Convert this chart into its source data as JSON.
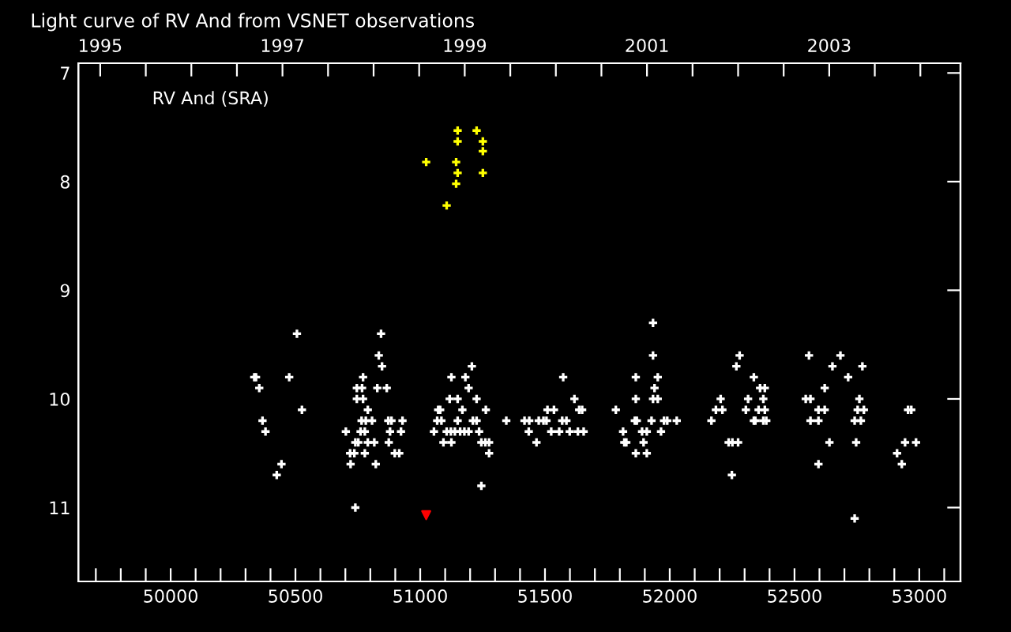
{
  "chart_data": {
    "type": "scatter",
    "title": "Light curve of RV And from VSNET observations",
    "annotations": [
      "RV And (SRA)"
    ],
    "xlim": [
      49630,
      53165
    ],
    "xticks": [
      {
        "value": 49700,
        "label": null
      },
      {
        "value": 49800,
        "label": null
      },
      {
        "value": 49900,
        "label": null
      },
      50000,
      {
        "value": 50100,
        "label": null
      },
      {
        "value": 50200,
        "label": null
      },
      {
        "value": 50300,
        "label": null
      },
      {
        "value": 50400,
        "label": null
      },
      50500,
      {
        "value": 50600,
        "label": null
      },
      {
        "value": 50700,
        "label": null
      },
      {
        "value": 50800,
        "label": null
      },
      {
        "value": 50900,
        "label": null
      },
      51000,
      {
        "value": 51100,
        "label": null
      },
      {
        "value": 51200,
        "label": null
      },
      {
        "value": 51300,
        "label": null
      },
      {
        "value": 51400,
        "label": null
      },
      51500,
      {
        "value": 51600,
        "label": null
      },
      {
        "value": 51700,
        "label": null
      },
      {
        "value": 51800,
        "label": null
      },
      {
        "value": 51900,
        "label": null
      },
      52000,
      {
        "value": 52100,
        "label": null
      },
      {
        "value": 52200,
        "label": null
      },
      {
        "value": 52300,
        "label": null
      },
      {
        "value": 52400,
        "label": null
      },
      52500,
      {
        "value": 52600,
        "label": null
      },
      {
        "value": 52700,
        "label": null
      },
      {
        "value": 52800,
        "label": null
      },
      {
        "value": 52900,
        "label": null
      },
      53000,
      {
        "value": 53100,
        "label": null
      }
    ],
    "x2lim": [
      1994.76,
      2004.44
    ],
    "x2ticks": [
      1995,
      {
        "value": 1995.5,
        "label": null
      },
      {
        "value": 1996,
        "label": null
      },
      {
        "value": 1996.5,
        "label": null
      },
      1997,
      {
        "value": 1997.5,
        "label": null
      },
      {
        "value": 1998,
        "label": null
      },
      {
        "value": 1998.5,
        "label": null
      },
      1999,
      {
        "value": 1999.5,
        "label": null
      },
      {
        "value": 2000,
        "label": null
      },
      {
        "value": 2000.5,
        "label": null
      },
      2001,
      {
        "value": 2001.5,
        "label": null
      },
      {
        "value": 2002,
        "label": null
      },
      {
        "value": 2002.5,
        "label": null
      },
      2003,
      {
        "value": 2003.5,
        "label": null
      },
      {
        "value": 2004,
        "label": null
      }
    ],
    "ylim": [
      11.68,
      6.91
    ],
    "yticks": [
      7,
      8,
      9,
      10,
      11
    ],
    "marker": "cross",
    "series": [
      {
        "color": "#ffffff",
        "x": [
          50506,
          50335,
          50342,
          50475,
          50355,
          50526,
          50368,
          50380,
          50444,
          50425,
          50843,
          50834,
          50847,
          51207,
          50771,
          51125,
          51181,
          50746,
          50767,
          50828,
          50866,
          51194,
          50746,
          50771,
          51118,
          51150,
          51226,
          50790,
          51072,
          51080,
          51169,
          51263,
          50765,
          50782,
          50807,
          50872,
          50885,
          50929,
          51068,
          51085,
          51150,
          51211,
          51226,
          51345,
          50702,
          50761,
          50778,
          50879,
          50923,
          51055,
          51106,
          51123,
          51139,
          51160,
          51177,
          51194,
          51236,
          50740,
          50752,
          50790,
          50816,
          50874,
          51093,
          51125,
          51245,
          51261,
          51276,
          50719,
          50736,
          50778,
          50898,
          50916,
          51276,
          50721,
          50822,
          51245,
          50740,
          51933,
          51933,
          51573,
          51864,
          51952,
          51939,
          51618,
          51864,
          51933,
          51952,
          51510,
          51536,
          51637,
          51649,
          51784,
          51418,
          51437,
          51475,
          51494,
          51506,
          51569,
          51586,
          51860,
          51868,
          51927,
          51977,
          51990,
          52028,
          51435,
          51525,
          51557,
          51599,
          51632,
          51655,
          51813,
          51889,
          51908,
          51965,
          51466,
          51818,
          51826,
          51895,
          51864,
          51908,
          52280,
          52558,
          52684,
          52267,
          52652,
          52772,
          52337,
          52715,
          52362,
          52381,
          52621,
          52204,
          52314,
          52375,
          52545,
          52564,
          52760,
          52185,
          52211,
          52305,
          52356,
          52381,
          52596,
          52621,
          52753,
          52778,
          52955,
          52968,
          52167,
          52337,
          52343,
          52375,
          52387,
          52564,
          52596,
          52741,
          52766,
          52236,
          52251,
          52274,
          52640,
          52747,
          52943,
          52987,
          52911,
          52596,
          52930,
          52249,
          52741
        ],
        "values": [
          9.4,
          9.8,
          9.8,
          9.8,
          9.9,
          10.1,
          10.2,
          10.3,
          10.6,
          10.7,
          9.4,
          9.6,
          9.7,
          9.7,
          9.8,
          9.8,
          9.8,
          9.9,
          9.9,
          9.9,
          9.9,
          9.9,
          10.0,
          10.0,
          10.0,
          10.0,
          10.0,
          10.1,
          10.1,
          10.1,
          10.1,
          10.1,
          10.2,
          10.2,
          10.2,
          10.2,
          10.2,
          10.2,
          10.2,
          10.2,
          10.2,
          10.2,
          10.2,
          10.2,
          10.3,
          10.3,
          10.3,
          10.3,
          10.3,
          10.3,
          10.3,
          10.3,
          10.3,
          10.3,
          10.3,
          10.3,
          10.3,
          10.4,
          10.4,
          10.4,
          10.4,
          10.4,
          10.4,
          10.4,
          10.4,
          10.4,
          10.4,
          10.5,
          10.5,
          10.5,
          10.5,
          10.5,
          10.5,
          10.6,
          10.6,
          10.8,
          11.0,
          9.3,
          9.6,
          9.8,
          9.8,
          9.8,
          9.9,
          10.0,
          10.0,
          10.0,
          10.0,
          10.1,
          10.1,
          10.1,
          10.1,
          10.1,
          10.2,
          10.2,
          10.2,
          10.2,
          10.2,
          10.2,
          10.2,
          10.2,
          10.2,
          10.2,
          10.2,
          10.2,
          10.2,
          10.3,
          10.3,
          10.3,
          10.3,
          10.3,
          10.3,
          10.3,
          10.3,
          10.3,
          10.3,
          10.4,
          10.4,
          10.4,
          10.4,
          10.5,
          10.5,
          9.6,
          9.6,
          9.6,
          9.7,
          9.7,
          9.7,
          9.8,
          9.8,
          9.9,
          9.9,
          9.9,
          10.0,
          10.0,
          10.0,
          10.0,
          10.0,
          10.0,
          10.1,
          10.1,
          10.1,
          10.1,
          10.1,
          10.1,
          10.1,
          10.1,
          10.1,
          10.1,
          10.1,
          10.2,
          10.2,
          10.2,
          10.2,
          10.2,
          10.2,
          10.2,
          10.2,
          10.2,
          10.4,
          10.4,
          10.4,
          10.4,
          10.4,
          10.4,
          10.4,
          10.5,
          10.6,
          10.6,
          10.7,
          11.1
        ]
      },
      {
        "color": "#ffff00",
        "x": [
          51150,
          51226,
          51150,
          51251,
          51251,
          51024,
          51144,
          51150,
          51251,
          51144,
          51106
        ],
        "values": [
          7.53,
          7.53,
          7.63,
          7.63,
          7.72,
          7.82,
          7.82,
          7.92,
          7.92,
          8.02,
          8.22
        ]
      },
      {
        "color": "#ff0000",
        "marker": "triangle",
        "x": [
          51024
        ],
        "values": [
          11.07
        ]
      }
    ]
  }
}
